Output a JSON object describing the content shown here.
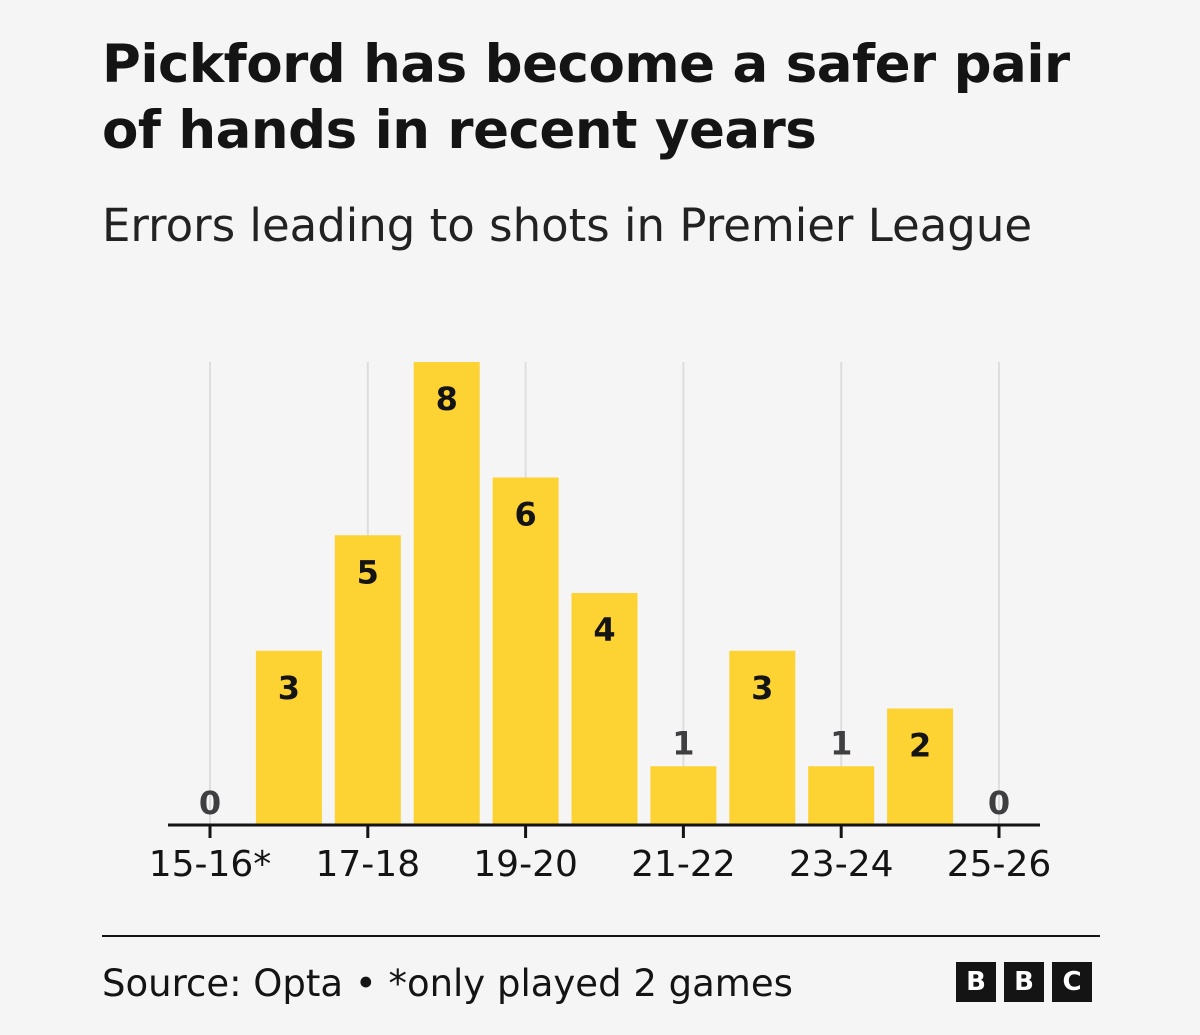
{
  "header": {
    "title": "Pickford has become a safer pair of hands in recent years",
    "subtitle": "Errors leading to shots in Premier League"
  },
  "footer": {
    "source": "Source: Opta • *only played 2 games",
    "logo_letters": [
      "B",
      "B",
      "C"
    ]
  },
  "colors": {
    "bar": "#fdd333",
    "text": "#141414",
    "grid": "#dedede",
    "zero_label": "#3f3f42"
  },
  "chart_data": {
    "type": "bar",
    "title": "Pickford has become a safer pair of hands in recent years",
    "subtitle": "Errors leading to shots in Premier League",
    "categories": [
      "15-16*",
      "16-17",
      "17-18",
      "18-19",
      "19-20",
      "20-21",
      "21-22",
      "22-23",
      "23-24",
      "24-25",
      "25-26"
    ],
    "tick_labels": [
      "15-16*",
      "17-18",
      "19-20",
      "21-22",
      "23-24",
      "25-26"
    ],
    "values": [
      0,
      3,
      5,
      8,
      6,
      4,
      1,
      3,
      1,
      2,
      0
    ],
    "ylim": [
      0,
      8
    ],
    "grid": true,
    "xlabel": "",
    "ylabel": ""
  }
}
